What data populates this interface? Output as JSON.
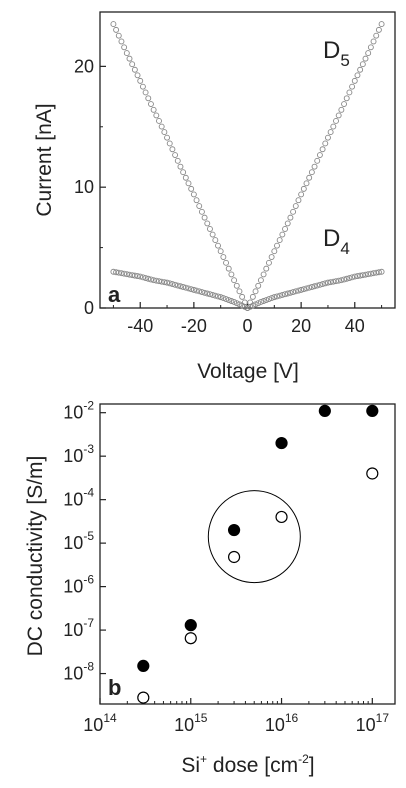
{
  "chart_data": [
    {
      "type": "scatter",
      "panel": "a",
      "title": "",
      "xlabel": "Voltage [V]",
      "ylabel": "Current [nA]",
      "xlim": [
        -55,
        55
      ],
      "ylim": [
        0,
        24.5
      ],
      "xticks": [
        "-40",
        "-20",
        "0",
        "20",
        "40"
      ],
      "xtick_values": [
        -40,
        -20,
        0,
        20,
        40
      ],
      "yticks": [
        "0",
        "10",
        "20"
      ],
      "ytick_values": [
        0,
        10,
        20
      ],
      "grid": false,
      "marker": "open-circle",
      "marker_color": "#888888",
      "series": [
        {
          "name": "D5",
          "label_main": "D",
          "label_sub": "5",
          "x": [
            -50,
            -45,
            -40,
            -35,
            -30,
            -25,
            -20,
            -15,
            -10,
            -5,
            0,
            5,
            10,
            15,
            20,
            25,
            30,
            35,
            40,
            45,
            50
          ],
          "y": [
            23.5,
            21.1,
            18.8,
            16.4,
            14.1,
            11.7,
            9.4,
            7.0,
            4.7,
            2.3,
            0,
            2.3,
            4.7,
            7.0,
            9.4,
            11.7,
            14.1,
            16.4,
            18.8,
            21.1,
            23.5
          ]
        },
        {
          "name": "D4",
          "label_main": "D",
          "label_sub": "4",
          "x": [
            -50,
            -45,
            -40,
            -35,
            -30,
            -25,
            -20,
            -15,
            -10,
            -5,
            0,
            5,
            10,
            15,
            20,
            25,
            30,
            35,
            40,
            45,
            50
          ],
          "y": [
            3.0,
            2.8,
            2.6,
            2.3,
            2.1,
            1.8,
            1.5,
            1.2,
            0.9,
            0.5,
            0,
            0.5,
            0.9,
            1.2,
            1.5,
            1.8,
            2.1,
            2.3,
            2.6,
            2.8,
            3.0
          ]
        }
      ]
    },
    {
      "type": "scatter",
      "panel": "b",
      "title": "",
      "xlabel_main": "Si",
      "xlabel_sup": "+",
      "xlabel_rest": " dose [cm",
      "xlabel_sup2": "-2",
      "xlabel_end": "]",
      "ylabel": "DC conductivity [S/m]",
      "x_scale": "log",
      "y_scale": "log",
      "xlim_log10": [
        14,
        17.25
      ],
      "ylim_log10": [
        -8.7,
        -1.8
      ],
      "xticks": [
        {
          "base": "10",
          "exp": "14",
          "log10": 14
        },
        {
          "base": "10",
          "exp": "15",
          "log10": 15
        },
        {
          "base": "10",
          "exp": "16",
          "log10": 16
        },
        {
          "base": "10",
          "exp": "17",
          "log10": 17
        }
      ],
      "yticks": [
        {
          "base": "10",
          "exp": "-8",
          "log10": -8
        },
        {
          "base": "10",
          "exp": "-7",
          "log10": -7
        },
        {
          "base": "10",
          "exp": "-6",
          "log10": -6
        },
        {
          "base": "10",
          "exp": "-5",
          "log10": -5
        },
        {
          "base": "10",
          "exp": "-4",
          "log10": -4
        },
        {
          "base": "10",
          "exp": "-3",
          "log10": -3
        },
        {
          "base": "10",
          "exp": "-2",
          "log10": -2
        }
      ],
      "grid": false,
      "series": [
        {
          "marker": "filled-circle",
          "x": [
            300000000000000.0,
            1000000000000000.0,
            3000000000000000.0,
            1e+16,
            3e+16,
            1e+17
          ],
          "y": [
            1.5e-08,
            1.3e-07,
            2e-05,
            0.002,
            0.011,
            0.011
          ]
        },
        {
          "marker": "open-circle",
          "x": [
            300000000000000.0,
            1000000000000000.0,
            3000000000000000.0,
            1e+16,
            1e+17
          ],
          "y": [
            2.8e-09,
            6.5e-08,
            4.8e-06,
            4e-05,
            0.0004
          ]
        }
      ],
      "annotation": {
        "shape": "circle",
        "center_x_log10": 15.7,
        "center_y_log10": -4.85,
        "highlights": "points at 3e15 and 1e16"
      }
    }
  ]
}
